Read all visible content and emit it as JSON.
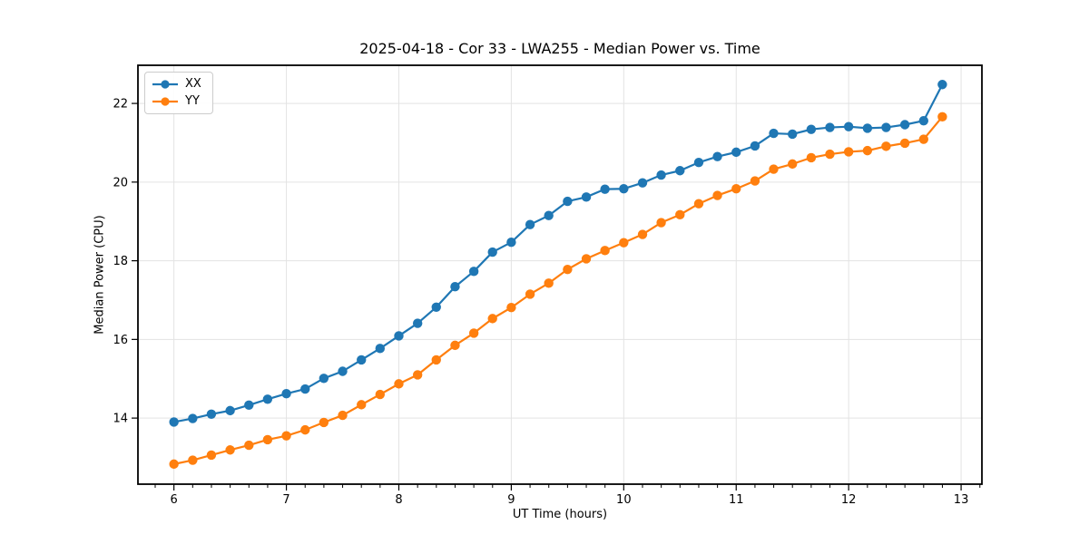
{
  "chart_data": {
    "type": "line",
    "title": "2025-04-18 - Cor 33 - LWA255 - Median Power vs. Time",
    "xlabel": "UT Time (hours)",
    "ylabel": "Median Power (CPU)",
    "xlim": [
      5.68,
      13.185
    ],
    "ylim": [
      12.32,
      22.97
    ],
    "xticks": [
      6,
      7,
      8,
      9,
      10,
      11,
      12,
      13
    ],
    "yticks": [
      14,
      16,
      18,
      20,
      22
    ],
    "x_minor_tick_step": 0.16667,
    "grid": true,
    "legend_position": "upper left",
    "x": [
      6.0,
      6.167,
      6.333,
      6.5,
      6.667,
      6.833,
      7.0,
      7.167,
      7.333,
      7.5,
      7.667,
      7.833,
      8.0,
      8.167,
      8.333,
      8.5,
      8.667,
      8.833,
      9.0,
      9.167,
      9.333,
      9.5,
      9.667,
      9.833,
      10.0,
      10.167,
      10.333,
      10.5,
      10.667,
      10.833,
      11.0,
      11.167,
      11.333,
      11.5,
      11.667,
      11.833,
      12.0,
      12.167,
      12.333,
      12.5,
      12.667,
      12.833
    ],
    "series": [
      {
        "name": "XX",
        "color": "#1f77b4",
        "values": [
          13.9,
          13.99,
          14.1,
          14.19,
          14.33,
          14.48,
          14.62,
          14.74,
          15.01,
          15.19,
          15.48,
          15.77,
          16.09,
          16.41,
          16.82,
          17.34,
          17.73,
          18.22,
          18.47,
          18.92,
          19.15,
          19.51,
          19.62,
          19.82,
          19.83,
          19.98,
          20.18,
          20.29,
          20.5,
          20.65,
          20.76,
          20.92,
          21.24,
          21.22,
          21.34,
          21.39,
          21.41,
          21.37,
          21.39,
          21.46,
          21.56,
          22.48
        ]
      },
      {
        "name": "YY",
        "color": "#ff7f0e",
        "values": [
          12.83,
          12.93,
          13.06,
          13.19,
          13.31,
          13.45,
          13.55,
          13.7,
          13.89,
          14.07,
          14.34,
          14.6,
          14.87,
          15.1,
          15.48,
          15.85,
          16.16,
          16.53,
          16.81,
          17.15,
          17.43,
          17.78,
          18.05,
          18.26,
          18.46,
          18.67,
          18.97,
          19.17,
          19.45,
          19.66,
          19.83,
          20.03,
          20.33,
          20.46,
          20.62,
          20.71,
          20.77,
          20.8,
          20.91,
          20.99,
          21.09,
          21.66
        ]
      }
    ],
    "style": {
      "grid_color": "#e3e3e3",
      "spine_color": "#000000",
      "tick_color": "#000000",
      "text_color": "#000000",
      "background": "#ffffff"
    }
  }
}
